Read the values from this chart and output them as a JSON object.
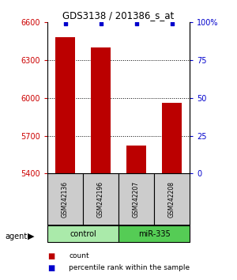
{
  "title": "GDS3138 / 201386_s_at",
  "samples": [
    "GSM242136",
    "GSM242196",
    "GSM242207",
    "GSM242208"
  ],
  "counts": [
    6480,
    6400,
    5620,
    5960
  ],
  "percentiles": [
    99,
    99,
    99,
    99
  ],
  "ylim_left": [
    5400,
    6600
  ],
  "ylim_right": [
    0,
    100
  ],
  "yticks_left": [
    5400,
    5700,
    6000,
    6300,
    6600
  ],
  "yticks_right": [
    0,
    25,
    50,
    75,
    100
  ],
  "ytick_labels_right": [
    "0",
    "25",
    "50",
    "75",
    "100%"
  ],
  "bar_color": "#bb0000",
  "dot_color": "#0000cc",
  "groups": [
    {
      "label": "control",
      "samples": [
        0,
        1
      ],
      "color": "#aaeaaa"
    },
    {
      "label": "miR-335",
      "samples": [
        2,
        3
      ],
      "color": "#55cc55"
    }
  ],
  "group_row_label": "agent",
  "legend_count_label": "count",
  "legend_pct_label": "percentile rank within the sample",
  "bar_width": 0.55,
  "bg_color": "#ffffff",
  "sample_box_color": "#cccccc",
  "left_tick_color": "#cc0000",
  "right_tick_color": "#0000cc"
}
